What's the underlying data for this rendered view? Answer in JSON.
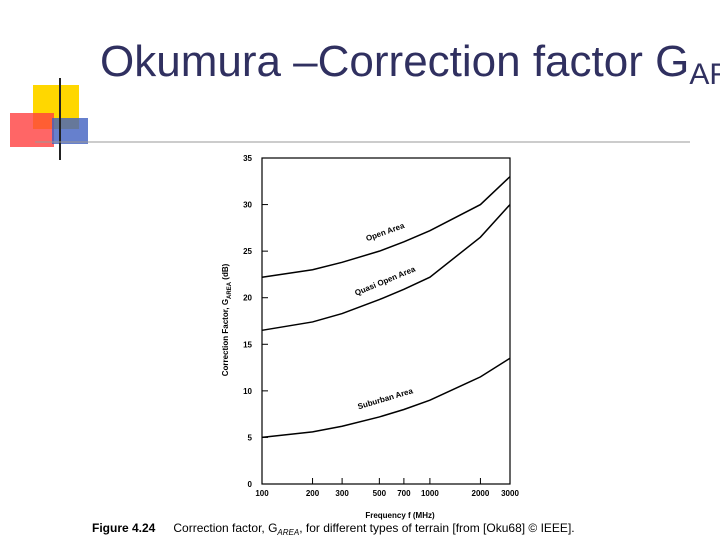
{
  "slide": {
    "title_main": "Okumura –Correction factor G",
    "title_sub": "AREA"
  },
  "chart_data": {
    "type": "line",
    "y_label": [
      "Correction Factor, G",
      "AREA",
      " (dB)"
    ],
    "x_label": "Frequency  f  (MHz)",
    "caption": {
      "number": "Figure 4.24",
      "text": "Correction factor, G",
      "sub": "AREA",
      "rest": ", for different types of terrain [from [Oku68] © IEEE]."
    },
    "x": [
      100,
      200,
      300,
      500,
      700,
      1000,
      2000,
      3000
    ],
    "xscale": "log",
    "xlim": [
      100,
      3000
    ],
    "xticks": [
      100,
      200,
      300,
      500,
      700,
      1000,
      2000,
      3000
    ],
    "ylim": [
      0,
      35
    ],
    "yticks": [
      0,
      5,
      10,
      15,
      20,
      25,
      30,
      35
    ],
    "series": [
      {
        "name": "Open Area",
        "color": "#000000",
        "values": [
          22.2,
          23.0,
          23.8,
          25.0,
          26.0,
          27.2,
          30.0,
          33.0
        ]
      },
      {
        "name": "Quasi Open Area",
        "color": "#000000",
        "values": [
          16.5,
          17.4,
          18.3,
          19.8,
          20.9,
          22.2,
          26.5,
          30.0
        ]
      },
      {
        "name": "Suburban Area",
        "color": "#000000",
        "values": [
          5.0,
          5.6,
          6.2,
          7.2,
          8.0,
          9.0,
          11.5,
          13.5
        ]
      }
    ]
  }
}
